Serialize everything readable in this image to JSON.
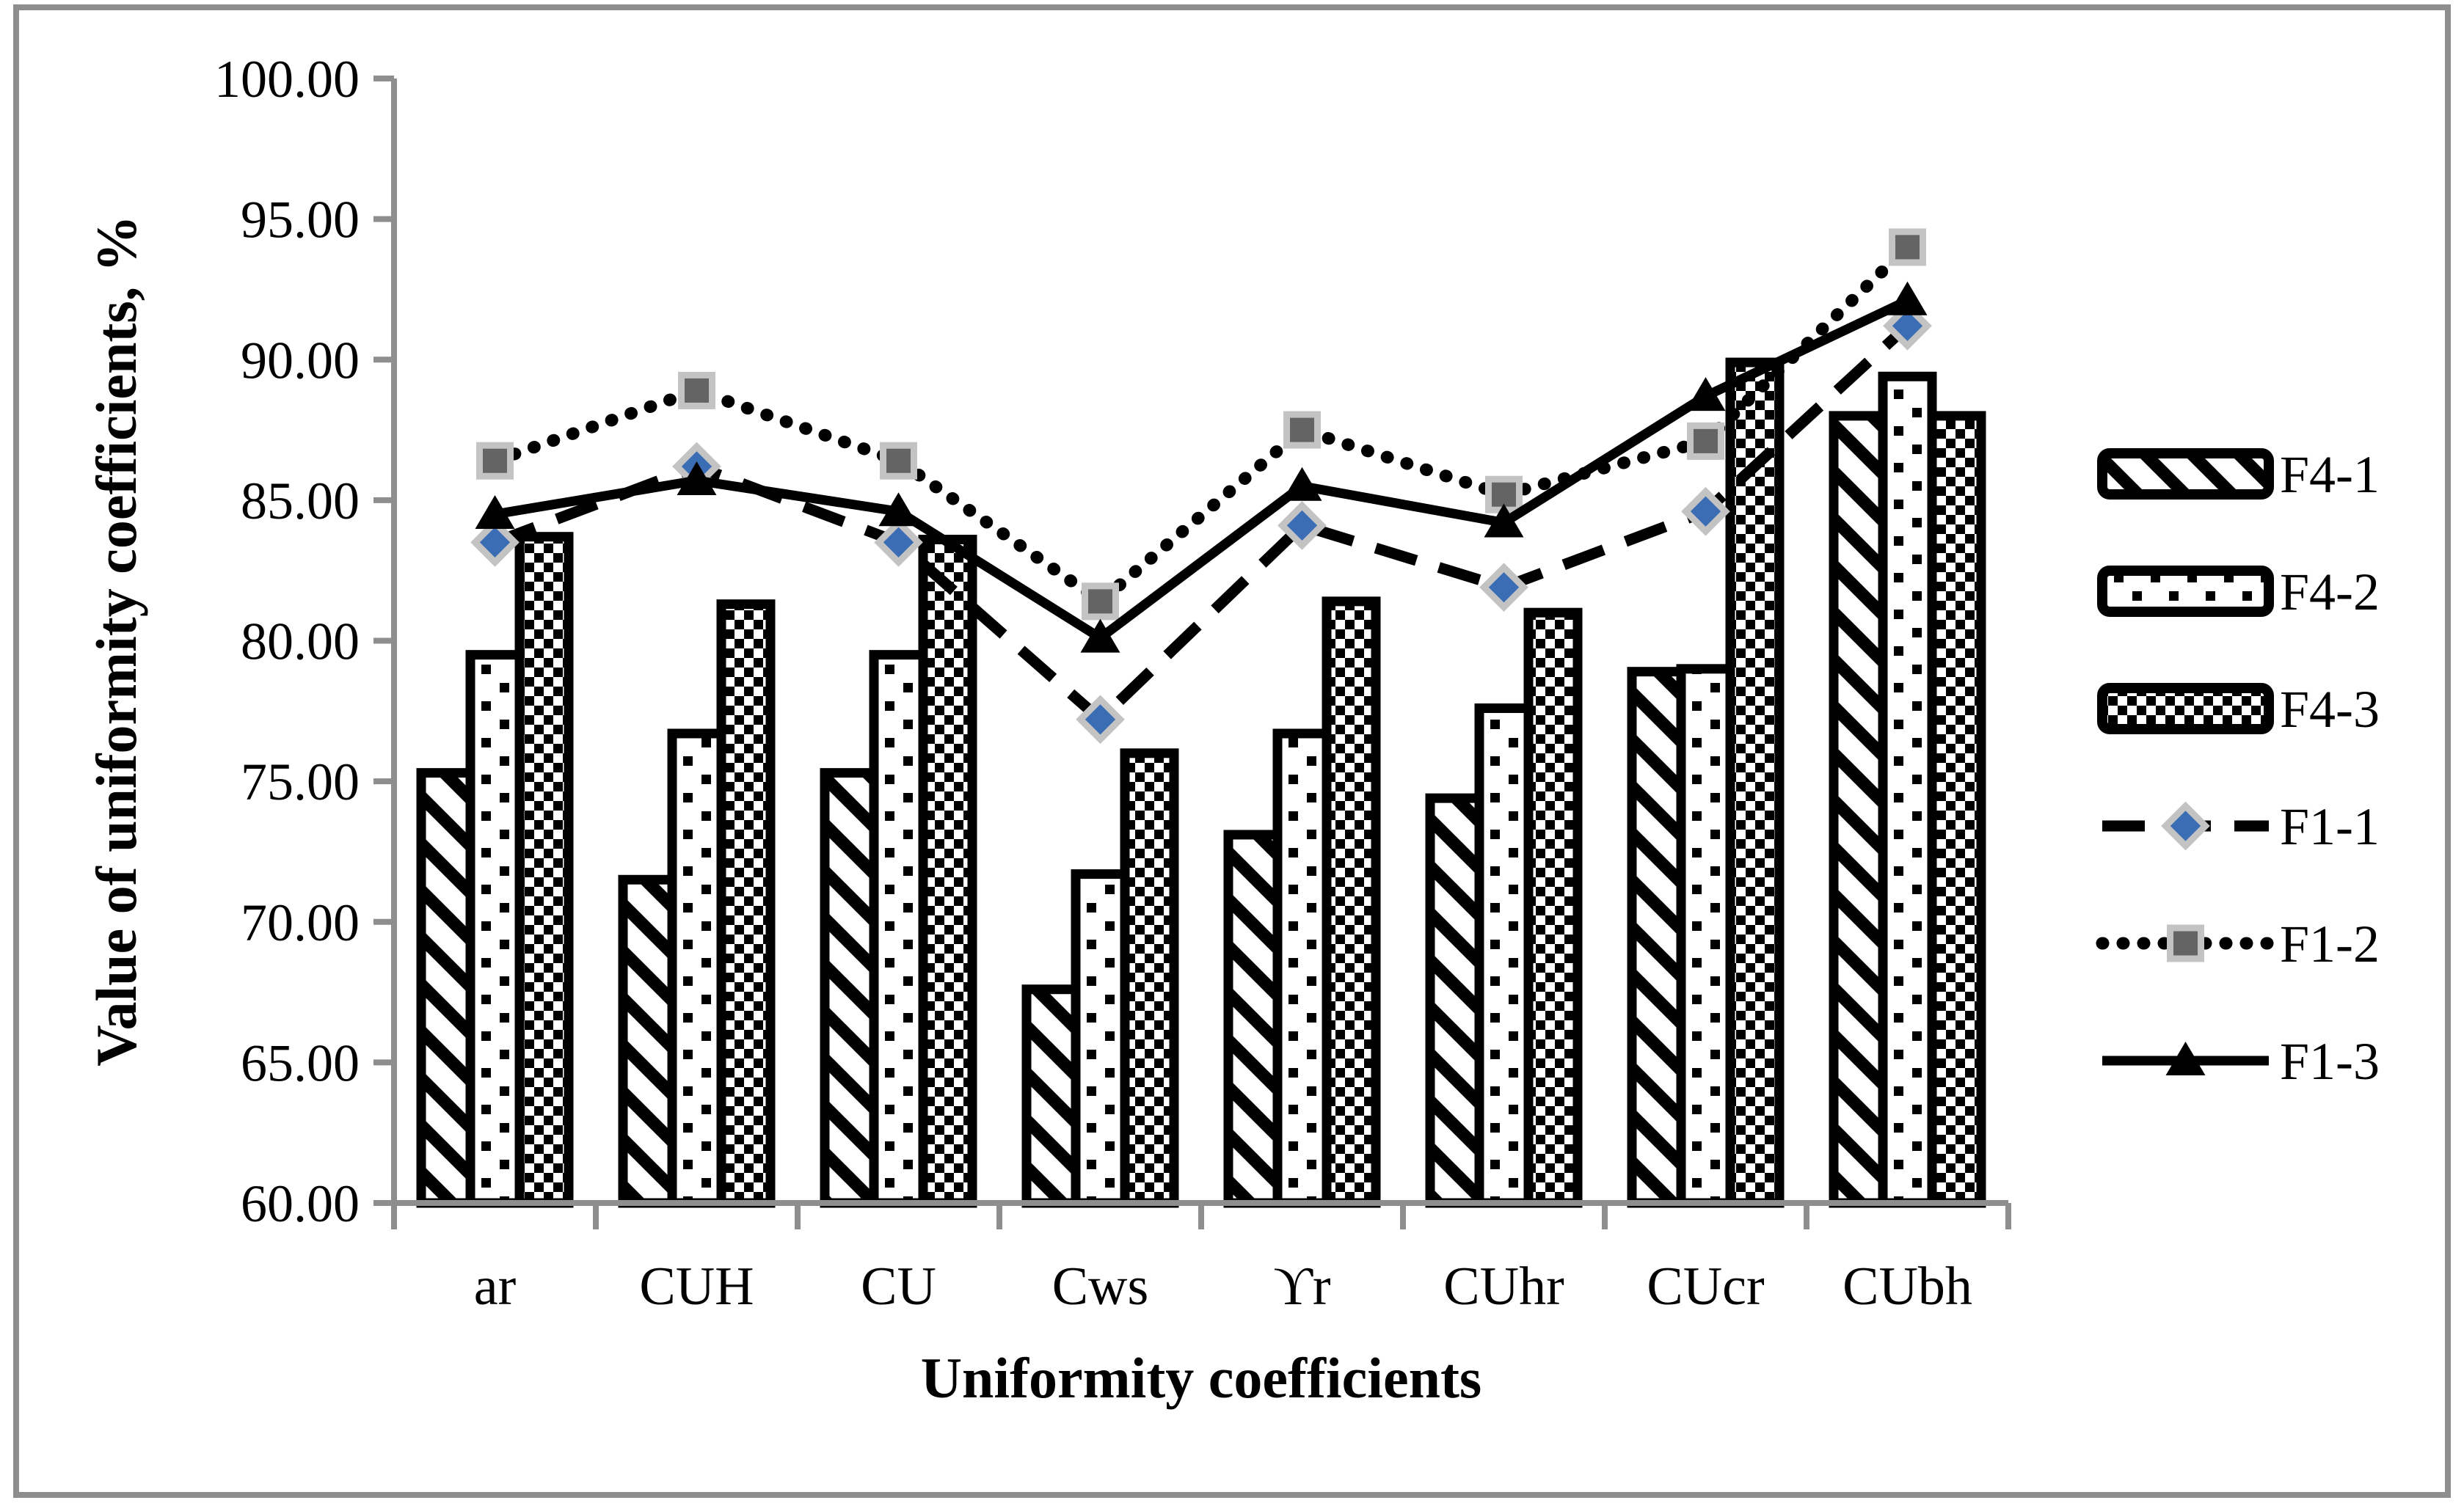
{
  "figure": {
    "background": "#ffffff",
    "frame_color": "#8e8e8e",
    "axis_color": "#8e8e8e"
  },
  "chart_data": {
    "type": "bar+line",
    "xlabel": "Uniformity coefficients",
    "ylabel": "Value of uniformity coefficients, %",
    "ylim": [
      60,
      100
    ],
    "ytick_step": 5,
    "ytick_labels": [
      "60.00",
      "65.00",
      "70.00",
      "75.00",
      "80.00",
      "85.00",
      "90.00",
      "95.00",
      "100.00"
    ],
    "grid": "off",
    "legend_position": "right",
    "categories": [
      "ar",
      "CUH",
      "CU",
      "Cws",
      "ϒr",
      "CUhr",
      "CUcr",
      "CUbh"
    ],
    "bar_series": [
      {
        "name": "F4-1",
        "pattern": "diagonal-hatch",
        "values": [
          75.3,
          71.5,
          75.3,
          67.6,
          73.1,
          74.4,
          78.9,
          88.0
        ]
      },
      {
        "name": "F4-2",
        "pattern": "dot-grid",
        "values": [
          79.5,
          76.7,
          79.5,
          71.7,
          76.7,
          77.6,
          79.0,
          89.4
        ]
      },
      {
        "name": "F4-3",
        "pattern": "checkerboard",
        "values": [
          83.7,
          81.3,
          83.6,
          76.0,
          81.4,
          81.0,
          89.9,
          88.0
        ]
      }
    ],
    "line_series": [
      {
        "name": "F1-1",
        "line_style": "dashed",
        "marker": "diamond",
        "marker_fill": "#3b6db5",
        "marker_stroke": "#c3c3c3",
        "line_color": "#000000",
        "values": [
          83.5,
          86.2,
          83.5,
          77.2,
          84.1,
          81.9,
          84.6,
          91.2
        ]
      },
      {
        "name": "F1-2",
        "line_style": "dotted",
        "marker": "square",
        "marker_fill": "#646464",
        "marker_stroke": "#c3c3c3",
        "line_color": "#000000",
        "values": [
          86.4,
          88.9,
          86.4,
          81.4,
          87.5,
          85.2,
          87.1,
          94.0
        ]
      },
      {
        "name": "F1-3",
        "line_style": "solid",
        "marker": "triangle",
        "marker_fill": "#000000",
        "marker_stroke": "#000000",
        "line_color": "#000000",
        "values": [
          84.5,
          85.7,
          84.6,
          80.1,
          85.5,
          84.2,
          88.7,
          92.1
        ]
      }
    ]
  }
}
